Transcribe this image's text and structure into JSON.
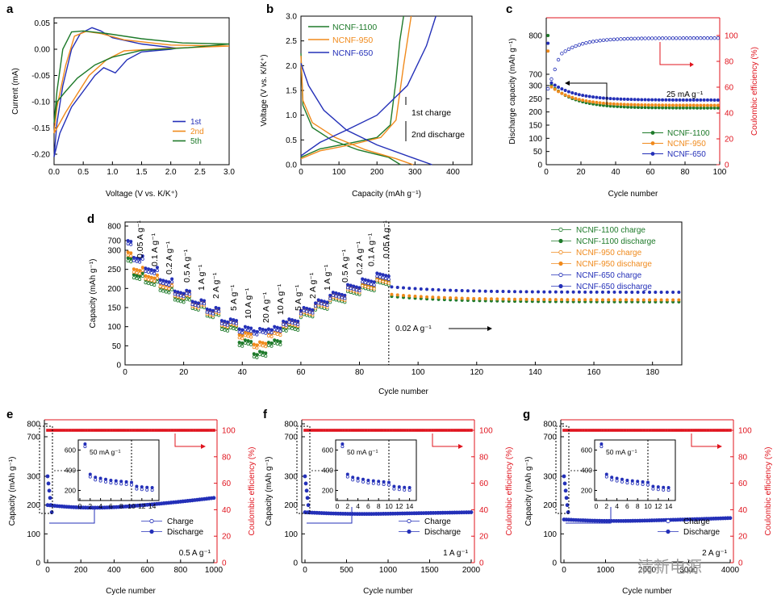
{
  "watermark": "清新电源",
  "colors": {
    "blue": "#2430b8",
    "orange": "#f08a1c",
    "green": "#1e7a2a",
    "red": "#e0141e",
    "black": "#000000"
  },
  "chart_data": [
    {
      "panel": "a",
      "type": "line",
      "xlabel": "Voltage (V vs. K/K⁺)",
      "ylabel": "Current (mA)",
      "xlim": [
        0,
        3.0
      ],
      "ylim": [
        -0.22,
        0.06
      ],
      "xticks": [
        "0.0",
        "0.5",
        "1.0",
        "1.5",
        "2.0",
        "2.5",
        "3.0"
      ],
      "yticks": [
        "0.05",
        "0.00",
        "-0.05",
        "-0.10",
        "-0.15",
        "-0.20"
      ],
      "legend": [
        "1st",
        "2nd",
        "5th"
      ],
      "series": [
        {
          "name": "1st",
          "color": "blue",
          "points": [
            [
              0.0,
              -0.205
            ],
            [
              0.05,
              -0.14
            ],
            [
              0.15,
              -0.07
            ],
            [
              0.3,
              0.0
            ],
            [
              0.45,
              0.03
            ],
            [
              0.65,
              0.041
            ],
            [
              0.8,
              0.035
            ],
            [
              1.0,
              0.022
            ],
            [
              1.5,
              0.01
            ],
            [
              2.1,
              0.002
            ],
            [
              2.0,
              0.0
            ],
            [
              1.5,
              -0.005
            ],
            [
              1.25,
              -0.02
            ],
            [
              1.05,
              -0.045
            ],
            [
              0.85,
              -0.035
            ],
            [
              0.7,
              -0.05
            ],
            [
              0.5,
              -0.08
            ],
            [
              0.3,
              -0.11
            ],
            [
              0.1,
              -0.16
            ],
            [
              0.0,
              -0.205
            ]
          ]
        },
        {
          "name": "2nd",
          "color": "orange",
          "points": [
            [
              0.0,
              -0.16
            ],
            [
              0.05,
              -0.11
            ],
            [
              0.2,
              -0.03
            ],
            [
              0.35,
              0.025
            ],
            [
              0.55,
              0.034
            ],
            [
              0.8,
              0.03
            ],
            [
              1.2,
              0.018
            ],
            [
              2.0,
              0.008
            ],
            [
              3.0,
              0.006
            ],
            [
              2.0,
              0.002
            ],
            [
              1.2,
              -0.003
            ],
            [
              0.9,
              -0.02
            ],
            [
              0.6,
              -0.05
            ],
            [
              0.4,
              -0.085
            ],
            [
              0.2,
              -0.12
            ],
            [
              0.0,
              -0.16
            ]
          ]
        },
        {
          "name": "5th",
          "color": "green",
          "points": [
            [
              0.0,
              -0.14
            ],
            [
              0.05,
              -0.08
            ],
            [
              0.15,
              0.0
            ],
            [
              0.3,
              0.033
            ],
            [
              0.5,
              0.035
            ],
            [
              0.9,
              0.03
            ],
            [
              1.5,
              0.02
            ],
            [
              2.2,
              0.012
            ],
            [
              3.0,
              0.01
            ],
            [
              2.3,
              0.003
            ],
            [
              1.5,
              -0.002
            ],
            [
              1.0,
              -0.015
            ],
            [
              0.7,
              -0.03
            ],
            [
              0.4,
              -0.055
            ],
            [
              0.2,
              -0.08
            ],
            [
              0.05,
              -0.1
            ],
            [
              0.0,
              -0.14
            ]
          ]
        }
      ]
    },
    {
      "panel": "b",
      "type": "line",
      "xlabel": "Capacity (mAh g⁻¹)",
      "ylabel": "Voltage (V vs. K/K⁺)",
      "xlim": [
        0,
        450
      ],
      "ylim": [
        0,
        3.0
      ],
      "xticks": [
        "0",
        "100",
        "200",
        "300",
        "400"
      ],
      "yticks": [
        "0.0",
        "0.5",
        "1.0",
        "1.5",
        "2.0",
        "2.5",
        "3.0"
      ],
      "legend": [
        "NCNF-1100",
        "NCNF-950",
        "NCNF-650"
      ],
      "annotations": [
        "1st charge",
        "2nd discharge"
      ],
      "series": [
        {
          "name": "NCNF-1100 charge",
          "color": "green",
          "points": [
            [
              0,
              0.15
            ],
            [
              50,
              0.32
            ],
            [
              120,
              0.42
            ],
            [
              200,
              0.55
            ],
            [
              235,
              0.8
            ],
            [
              250,
              1.7
            ],
            [
              260,
              2.5
            ],
            [
              270,
              3.0
            ]
          ]
        },
        {
          "name": "NCNF-1100 discharge",
          "color": "green",
          "points": [
            [
              0,
              2.25
            ],
            [
              5,
              1.2
            ],
            [
              30,
              0.75
            ],
            [
              80,
              0.5
            ],
            [
              150,
              0.3
            ],
            [
              230,
              0.15
            ],
            [
              262,
              0.0
            ]
          ]
        },
        {
          "name": "NCNF-950 charge",
          "color": "orange",
          "points": [
            [
              0,
              0.12
            ],
            [
              50,
              0.28
            ],
            [
              130,
              0.4
            ],
            [
              210,
              0.55
            ],
            [
              250,
              0.9
            ],
            [
              270,
              2.0
            ],
            [
              290,
              3.0
            ]
          ]
        },
        {
          "name": "NCNF-950 discharge",
          "color": "orange",
          "points": [
            [
              0,
              2.2
            ],
            [
              5,
              1.3
            ],
            [
              30,
              0.85
            ],
            [
              90,
              0.55
            ],
            [
              170,
              0.3
            ],
            [
              250,
              0.12
            ],
            [
              295,
              0.0
            ]
          ]
        },
        {
          "name": "NCNF-650 charge",
          "color": "blue",
          "points": [
            [
              0,
              0.18
            ],
            [
              50,
              0.45
            ],
            [
              120,
              0.7
            ],
            [
              200,
              1.0
            ],
            [
              280,
              1.6
            ],
            [
              330,
              2.4
            ],
            [
              355,
              3.0
            ]
          ]
        },
        {
          "name": "NCNF-650 discharge",
          "color": "blue",
          "points": [
            [
              0,
              2.05
            ],
            [
              20,
              1.6
            ],
            [
              60,
              1.1
            ],
            [
              120,
              0.7
            ],
            [
              200,
              0.4
            ],
            [
              290,
              0.15
            ],
            [
              345,
              0.0
            ]
          ]
        }
      ]
    },
    {
      "panel": "c",
      "type": "scatter",
      "xlabel": "Cycle number",
      "ylabel": "Discharge capacity (mAh g⁻¹)",
      "y2label": "Coulombic efficiency (%)",
      "xlim": [
        0,
        100
      ],
      "ylim": [
        0,
        850
      ],
      "xticks": [
        "0",
        "20",
        "40",
        "60",
        "80",
        "100"
      ],
      "yticks": [
        "0",
        "50",
        "100",
        "150",
        "200",
        "250",
        "300",
        "700",
        "800"
      ],
      "y2ticks": [
        "0",
        "20",
        "40",
        "60",
        "80",
        "100"
      ],
      "legend": [
        "NCNF-1100",
        "NCNF-950",
        "NCNF-650"
      ],
      "annotation": "25 mA g⁻¹",
      "series": [
        {
          "name": "NCNF-1100",
          "color": "green",
          "first": 800,
          "start": 300,
          "end": 215
        },
        {
          "name": "NCNF-950",
          "color": "orange",
          "first": 760,
          "start": 295,
          "end": 225
        },
        {
          "name": "NCNF-650",
          "color": "blue",
          "first": 780,
          "start": 310,
          "end": 245
        },
        {
          "name": "Coulombic efficiency",
          "color": "blue",
          "first": 55,
          "start": 85,
          "end": 98
        }
      ]
    },
    {
      "panel": "d",
      "type": "scatter",
      "xlabel": "Cycle number",
      "ylabel": "Capacity (mAh g⁻¹)",
      "xlim": [
        0,
        190
      ],
      "ylim": [
        0,
        800
      ],
      "xticks": [
        "0",
        "20",
        "40",
        "60",
        "80",
        "100",
        "120",
        "140",
        "160",
        "180"
      ],
      "yticks": [
        "0",
        "50",
        "100",
        "150",
        "200",
        "250",
        "300",
        "700",
        "800"
      ],
      "rate_labels": [
        "0.05 A g⁻¹",
        "0.1 A g⁻¹",
        "0.2 A g⁻¹",
        "0.5 A g⁻¹",
        "1 A g⁻¹",
        "2 A g⁻¹",
        "5 A g⁻¹",
        "10 A g⁻¹",
        "20 A g⁻¹",
        "10 A g⁻¹",
        "5 A g⁻¹",
        "2 A g⁻¹",
        "1 A g⁻¹",
        "0.5 A g⁻¹",
        "0.2 A g⁻¹",
        "0.1 A g⁻¹",
        "0.05 A g⁻¹"
      ],
      "annotation": "0.02 A g⁻¹",
      "legend": [
        "NCNF-1100 charge",
        "NCNF-1100 discharge",
        "NCNF-950 charge",
        "NCNF-950 discharge",
        "NCNF-650 charge",
        "NCNF-650 discharge"
      ],
      "steps": {
        "NCNF-1100": [
          240,
          225,
          205,
          180,
          160,
          140,
          105,
          65,
          35,
          65,
          105,
          140,
          160,
          180,
          200,
          210,
          225,
          165
        ],
        "NCNF-950": [
          255,
          235,
          215,
          190,
          165,
          145,
          115,
          85,
          60,
          90,
          115,
          145,
          165,
          185,
          205,
          215,
          230,
          170
        ],
        "NCNF-650": [
          285,
          255,
          225,
          195,
          170,
          150,
          120,
          100,
          95,
          100,
          120,
          150,
          170,
          190,
          210,
          225,
          240,
          190
        ]
      }
    },
    {
      "panel": "e",
      "type": "scatter",
      "xlabel": "Cycle number",
      "ylabel": "Capacity (mAh g⁻¹)",
      "y2label": "Coulombic efficiency (%)",
      "xlim": [
        0,
        1000
      ],
      "xticks": [
        "0",
        "200",
        "400",
        "600",
        "800",
        "1000"
      ],
      "yticks": [
        "0",
        "100",
        "200",
        "300",
        "700",
        "800"
      ],
      "y2ticks": [
        "0",
        "20",
        "40",
        "60",
        "80",
        "100"
      ],
      "legend": [
        "Charge",
        "Discharge"
      ],
      "rate": "0.5 A g⁻¹",
      "inset_label": "50 mA g⁻¹",
      "inset_xticks": [
        "0",
        "2",
        "4",
        "6",
        "8",
        "10",
        "12",
        "14"
      ],
      "inset_yticks": [
        "200",
        "400",
        "600"
      ],
      "capacity_start": 200,
      "capacity_min": 180,
      "capacity_end": 205,
      "efficiency": 100
    },
    {
      "panel": "f",
      "type": "scatter",
      "xlabel": "Cycle number",
      "ylabel": "Capacity (mAh g⁻¹)",
      "y2label": "Coulombic efficiency (%)",
      "xlim": [
        0,
        2000
      ],
      "xticks": [
        "0",
        "500",
        "1000",
        "1500",
        "2000"
      ],
      "yticks": [
        "0",
        "100",
        "200",
        "300",
        "700",
        "800"
      ],
      "y2ticks": [
        "0",
        "20",
        "40",
        "60",
        "80",
        "100"
      ],
      "legend": [
        "Charge",
        "Discharge"
      ],
      "rate": "1 A g⁻¹",
      "inset_label": "50 mA g⁻¹",
      "inset_xticks": [
        "0",
        "2",
        "4",
        "6",
        "8",
        "10",
        "12",
        "14"
      ],
      "inset_yticks": [
        "200",
        "400",
        "600"
      ],
      "capacity_start": 175,
      "capacity_min": 165,
      "capacity_end": 165,
      "efficiency": 100
    },
    {
      "panel": "g",
      "type": "scatter",
      "xlabel": "Cycle number",
      "ylabel": "Capacity (mAh g⁻¹)",
      "y2label": "Coulombic efficiency (%)",
      "xlim": [
        0,
        4000
      ],
      "xticks": [
        "0",
        "1000",
        "2000",
        "3000",
        "4000"
      ],
      "yticks": [
        "0",
        "100",
        "200",
        "300",
        "700",
        "800"
      ],
      "y2ticks": [
        "0",
        "20",
        "40",
        "60",
        "80",
        "100"
      ],
      "legend": [
        "Charge",
        "Discharge"
      ],
      "rate": "2 A g⁻¹",
      "inset_label": "50 mA g⁻¹",
      "inset_xticks": [
        "0",
        "2",
        "4",
        "6",
        "8",
        "10",
        "12",
        "14"
      ],
      "inset_yticks": [
        "200",
        "400",
        "600"
      ],
      "capacity_start": 150,
      "capacity_min": 140,
      "capacity_end": 145,
      "efficiency": 100
    }
  ]
}
